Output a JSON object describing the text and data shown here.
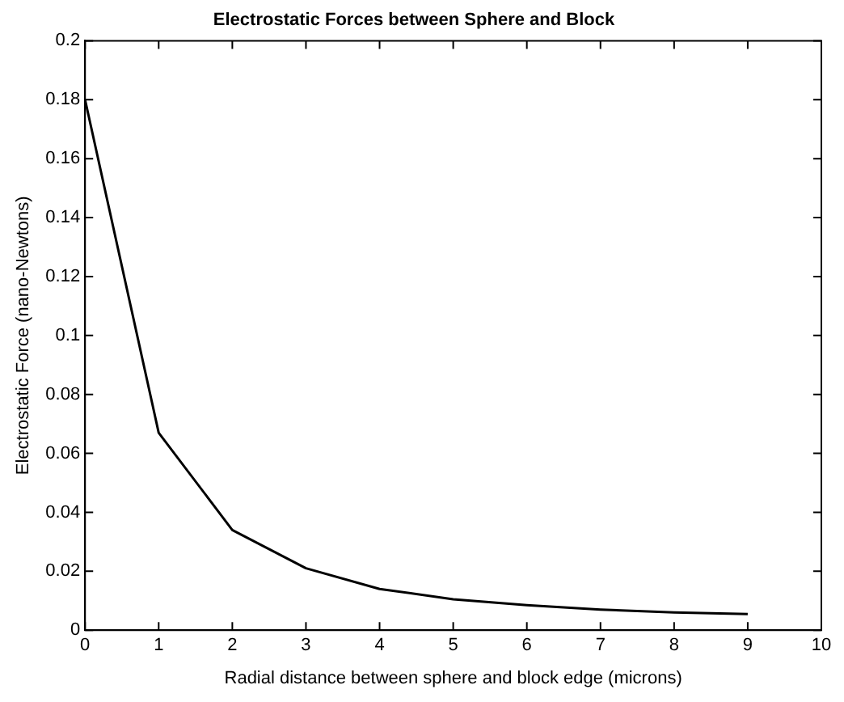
{
  "chart_data": {
    "type": "line",
    "title": "Electrostatic Forces between Sphere and Block",
    "xlabel": "Radial distance between sphere and block edge (microns)",
    "ylabel": "Electrostatic Force (nano-Newtons)",
    "x": [
      0,
      1,
      2,
      3,
      4,
      5,
      6,
      7,
      8,
      9
    ],
    "series": [
      {
        "color": "#000000",
        "values": [
          0.18,
          0.067,
          0.034,
          0.021,
          0.014,
          0.0105,
          0.0085,
          0.007,
          0.006,
          0.0055
        ]
      }
    ],
    "xlim": [
      0,
      10
    ],
    "xticks": [
      0,
      1,
      2,
      3,
      4,
      5,
      6,
      7,
      8,
      9,
      10
    ],
    "ylim": [
      0,
      0.2
    ],
    "yticks": [
      0,
      0.02,
      0.04,
      0.06,
      0.08,
      0.1,
      0.12,
      0.14,
      0.16,
      0.18,
      0.2
    ],
    "grid": false,
    "legend": false,
    "marker": "none",
    "line_style": "solid"
  }
}
